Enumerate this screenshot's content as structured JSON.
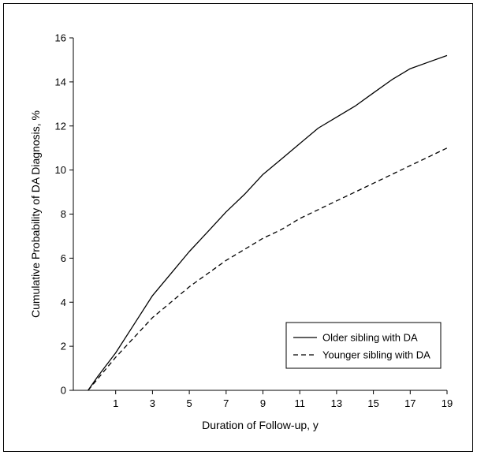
{
  "chart_data": {
    "type": "line",
    "title": "",
    "xlabel": "Duration of Follow-up, y",
    "ylabel": "Cumulative Probability of DA Diagnosis, %",
    "xlim": [
      -1.3,
      19
    ],
    "ylim": [
      0,
      16
    ],
    "x_ticks": [
      1,
      3,
      5,
      7,
      9,
      11,
      13,
      15,
      17,
      19
    ],
    "y_ticks": [
      0,
      2,
      4,
      6,
      8,
      10,
      12,
      14,
      16
    ],
    "grid": false,
    "legend_position": "bottom-right",
    "series": [
      {
        "name": "Older sibling with DA",
        "line_style": "solid",
        "x": [
          -0.5,
          0,
          1,
          2,
          3,
          4,
          5,
          6,
          7,
          8,
          9,
          10,
          11,
          12,
          13,
          14,
          15,
          16,
          17,
          18,
          19
        ],
        "y": [
          0,
          0.6,
          1.7,
          3.0,
          4.3,
          5.3,
          6.3,
          7.2,
          8.1,
          8.9,
          9.8,
          10.5,
          11.2,
          11.9,
          12.4,
          12.9,
          13.5,
          14.1,
          14.6,
          14.9,
          15.2
        ]
      },
      {
        "name": "Younger sibling with DA",
        "line_style": "dashed",
        "x": [
          -0.5,
          0,
          1,
          2,
          3,
          4,
          5,
          6,
          7,
          8,
          9,
          10,
          11,
          12,
          13,
          14,
          15,
          16,
          17,
          18,
          19
        ],
        "y": [
          0,
          0.5,
          1.5,
          2.4,
          3.3,
          4.0,
          4.7,
          5.3,
          5.9,
          6.4,
          6.9,
          7.3,
          7.8,
          8.2,
          8.6,
          9.0,
          9.4,
          9.8,
          10.2,
          10.6,
          11.0
        ]
      }
    ]
  },
  "colors": {
    "line": "#000000",
    "axis": "#000000",
    "background": "#ffffff"
  }
}
